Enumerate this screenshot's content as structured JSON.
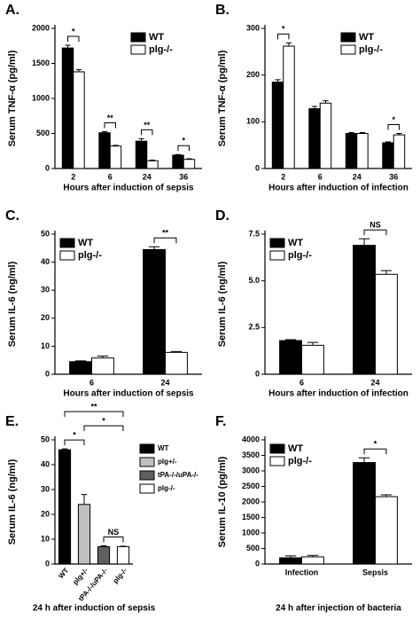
{
  "chart_data": [
    {
      "type": "bar",
      "panel": "A.",
      "ylabel": "Serum TNF-α (pg/ml)",
      "xlabel": "Hours after induction of sepsis",
      "categories": [
        "2",
        "6",
        "24",
        "36"
      ],
      "series": [
        {
          "name": "WT",
          "color": "#000000",
          "values": [
            1720,
            510,
            390,
            190
          ],
          "errors": [
            40,
            15,
            35,
            10
          ]
        },
        {
          "name": "plg-/-",
          "color": "#ffffff",
          "values": [
            1380,
            320,
            110,
            130
          ],
          "errors": [
            30,
            10,
            10,
            10
          ]
        }
      ],
      "ylim": [
        0,
        2000
      ],
      "yticks": [
        0,
        500,
        1000,
        1500,
        2000
      ],
      "legend": "upper right",
      "brackets": [
        {
          "label": "*",
          "from": 0,
          "to": 0
        },
        {
          "label": "**",
          "from": 1,
          "to": 1
        },
        {
          "label": "**",
          "from": 2,
          "to": 2
        },
        {
          "label": "*",
          "from": 3,
          "to": 3
        }
      ]
    },
    {
      "type": "bar",
      "panel": "B.",
      "ylabel": "Serum TNF-α (pg/ml)",
      "xlabel": "Hours after induction of infection",
      "categories": [
        "2",
        "6",
        "24",
        "36"
      ],
      "series": [
        {
          "name": "WT",
          "color": "#000000",
          "values": [
            185,
            128,
            75,
            55
          ],
          "errors": [
            5,
            5,
            2,
            2
          ]
        },
        {
          "name": "plg-/-",
          "color": "#ffffff",
          "values": [
            262,
            140,
            75,
            72
          ],
          "errors": [
            7,
            5,
            2,
            3
          ]
        }
      ],
      "ylim": [
        0,
        300
      ],
      "yticks": [
        0,
        100,
        200,
        300
      ],
      "legend": "upper right",
      "brackets": [
        {
          "label": "*",
          "from": 0,
          "to": 0
        },
        {
          "label": "*",
          "from": 3,
          "to": 3
        }
      ]
    },
    {
      "type": "bar",
      "panel": "C.",
      "ylabel": "Serum IL-6 (ng/ml)",
      "xlabel": "Hours after induction of sepsis",
      "categories": [
        "6",
        "24"
      ],
      "series": [
        {
          "name": "WT",
          "color": "#000000",
          "values": [
            4.5,
            44.5
          ],
          "errors": [
            0.3,
            1
          ]
        },
        {
          "name": "plg-/-",
          "color": "#ffffff",
          "values": [
            5.8,
            7.8
          ],
          "errors": [
            0.7,
            0.3
          ]
        }
      ],
      "ylim": [
        0,
        50
      ],
      "yticks": [
        0,
        10,
        20,
        30,
        40,
        50
      ],
      "legend": "upper left",
      "brackets": [
        {
          "label": "**",
          "from": 1,
          "to": 1
        }
      ]
    },
    {
      "type": "bar",
      "panel": "D.",
      "ylabel": "Serum IL-6 (ng/ml)",
      "xlabel": "Hours after induction of infection",
      "categories": [
        "6",
        "24"
      ],
      "series": [
        {
          "name": "WT",
          "color": "#000000",
          "values": [
            1.8,
            6.9
          ],
          "errors": [
            0.05,
            0.35
          ]
        },
        {
          "name": "plg-/-",
          "color": "#ffffff",
          "values": [
            1.55,
            5.35
          ],
          "errors": [
            0.15,
            0.2
          ]
        }
      ],
      "ylim": [
        0,
        7.5
      ],
      "yticks": [
        0,
        2.5,
        {
          "value": 5,
          "label": "5.0"
        },
        7.5
      ],
      "legend": "upper left",
      "brackets": [
        {
          "label": "NS",
          "from": 1,
          "to": 1
        }
      ]
    },
    {
      "type": "bar",
      "panel": "E.",
      "ylabel": "Serum IL-6 (ng/ml)",
      "xlabel": "24 h after induction of sepsis",
      "categories": [
        "WT",
        "plg+/-",
        "tPA-/-/uPA-/-",
        "plg-/-"
      ],
      "colors": [
        "#000000",
        "#c0c0c0",
        "#606060",
        "#ffffff"
      ],
      "values": [
        46,
        24,
        7,
        7
      ],
      "errors": [
        0.4,
        4,
        0.3,
        0.2
      ],
      "ylim": [
        0,
        50
      ],
      "yticks": [
        0,
        10,
        20,
        30,
        40,
        50
      ],
      "legend": "right",
      "brackets": [
        {
          "label": "NS",
          "from": 2,
          "to": 3
        },
        {
          "label": "*",
          "from": 0,
          "to": 1
        },
        {
          "label": "*",
          "from": 1,
          "to": 3
        },
        {
          "label": "**",
          "from": 0,
          "to": 3
        }
      ]
    },
    {
      "type": "bar",
      "panel": "F.",
      "ylabel": "Serum IL-10 (pg/ml)",
      "xlabel": "24 h after injection of bacteria",
      "categories": [
        "Infection",
        "Sepsis"
      ],
      "series": [
        {
          "name": "WT",
          "color": "#000000",
          "values": [
            200,
            3270
          ],
          "errors": [
            60,
            150
          ]
        },
        {
          "name": "plg-/-",
          "color": "#ffffff",
          "values": [
            230,
            2170
          ],
          "errors": [
            50,
            60
          ]
        }
      ],
      "ylim": [
        0,
        4000
      ],
      "yticks": [
        0,
        500,
        1000,
        1500,
        2000,
        2500,
        3000,
        3500,
        4000
      ],
      "legend": "upper left",
      "brackets": [
        {
          "label": "*",
          "from": 1,
          "to": 1
        }
      ]
    }
  ]
}
